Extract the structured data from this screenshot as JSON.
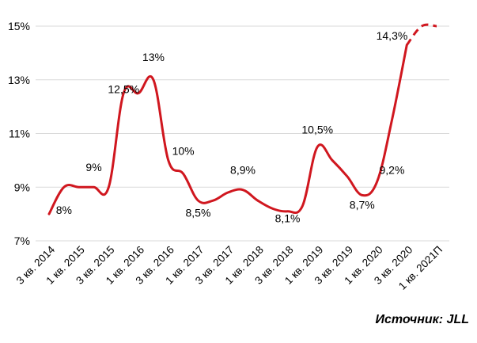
{
  "chart_data": {
    "type": "line",
    "title": "",
    "xlabel": "",
    "ylabel": "",
    "ylim": [
      7,
      15
    ],
    "y_ticks": [
      "7%",
      "9%",
      "11%",
      "13%",
      "15%"
    ],
    "y_tick_values": [
      7,
      9,
      11,
      13,
      15
    ],
    "grid": "horizontal",
    "line_color": "#D0171F",
    "categories": [
      "3 кв. 2014",
      "1 кв. 2015",
      "3 кв. 2015",
      "1 кв. 2016",
      "3 кв. 2016",
      "1 кв. 2017",
      "3 кв. 2017",
      "1 кв. 2018",
      "3 кв. 2018",
      "1 кв. 2019",
      "3 кв. 2019",
      "1 кв. 2020",
      "3 кв. 2020",
      "1 кв. 2021П"
    ],
    "x": [
      0,
      0.5,
      1,
      1.5,
      2,
      2.5,
      3,
      3.5,
      4,
      4.5,
      5,
      5.5,
      6,
      6.5,
      7,
      7.5,
      8,
      8.5,
      9,
      9.5,
      10,
      10.5,
      11,
      11.5,
      12,
      12.5,
      13
    ],
    "series": [
      {
        "values": [
          8.0,
          9.0,
          9.0,
          9.0,
          9.0,
          12.5,
          12.5,
          13.0,
          10.0,
          9.5,
          8.5,
          8.5,
          8.8,
          8.9,
          8.5,
          8.2,
          8.1,
          8.3,
          10.5,
          10.0,
          9.4,
          8.7,
          9.2,
          11.5,
          14.3,
          15.0,
          15.0
        ],
        "forecast_from_index": 24
      }
    ],
    "data_labels": [
      {
        "text": "8%",
        "x": 0.5,
        "y": 8.0
      },
      {
        "text": "9%",
        "x": 1.5,
        "y": 9.6
      },
      {
        "text": "12,5%",
        "x": 2.5,
        "y": 12.5
      },
      {
        "text": "13%",
        "x": 3.5,
        "y": 13.7
      },
      {
        "text": "10%",
        "x": 4.5,
        "y": 10.2
      },
      {
        "text": "8,5%",
        "x": 5.0,
        "y": 7.9
      },
      {
        "text": "8,9%",
        "x": 6.5,
        "y": 9.5
      },
      {
        "text": "8,1%",
        "x": 8.0,
        "y": 7.7
      },
      {
        "text": "10,5%",
        "x": 9.0,
        "y": 11.0
      },
      {
        "text": "8,7%",
        "x": 10.5,
        "y": 8.2
      },
      {
        "text": "9,2%",
        "x": 11.5,
        "y": 9.5
      },
      {
        "text": "14,3%",
        "x": 11.5,
        "y": 14.5
      }
    ]
  },
  "source_text": "Источник: JLL"
}
